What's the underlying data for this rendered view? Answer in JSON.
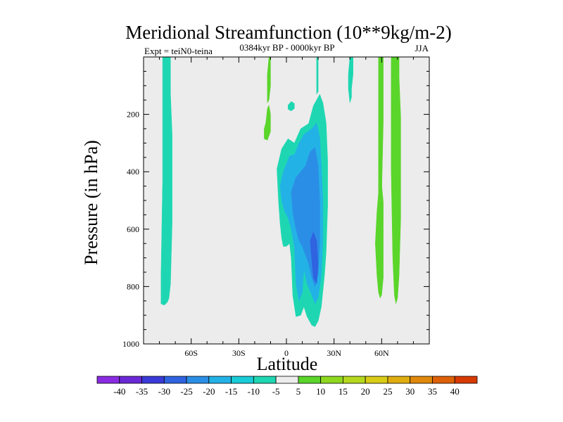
{
  "chart_data": {
    "type": "heatmap",
    "title": "Meridional Streamfunction (10**9kg/m-2)",
    "subtitle_left": "Expt = teiN0-teina",
    "subtitle_center": "0384kyr BP - 0000kyr BP",
    "subtitle_right": "JJA",
    "xlabel": "Latitude",
    "ylabel": "Pressure (in hPa)",
    "xlim": [
      -90,
      90
    ],
    "ylim": [
      0,
      1000
    ],
    "x_ticks": [
      {
        "value": -60,
        "label": "60S"
      },
      {
        "value": -30,
        "label": "30S"
      },
      {
        "value": 0,
        "label": "0"
      },
      {
        "value": 30,
        "label": "30N"
      },
      {
        "value": 60,
        "label": "60N"
      }
    ],
    "y_ticks": [
      {
        "value": 200,
        "label": "200"
      },
      {
        "value": 400,
        "label": "400"
      },
      {
        "value": 600,
        "label": "600"
      },
      {
        "value": 800,
        "label": "800"
      },
      {
        "value": 1000,
        "label": "1000"
      }
    ],
    "colorbar": {
      "labels": [
        "-40",
        "-35",
        "-30",
        "-25",
        "-20",
        "-15",
        "-10",
        "-5",
        "5",
        "10",
        "15",
        "20",
        "25",
        "30",
        "35",
        "40"
      ],
      "colors": [
        "#8a2be2",
        "#6a28d6",
        "#3a3ad8",
        "#2f63e0",
        "#2b8ee6",
        "#23b2e6",
        "#18ccd8",
        "#1ed7b2",
        "#ececec",
        "#5ad52a",
        "#8ed820",
        "#b5d81e",
        "#d9cc16",
        "#e0ad10",
        "#e0880c",
        "#de6008",
        "#d83a04"
      ]
    },
    "regions": [
      {
        "level": "-10",
        "color": "#1ed7b2",
        "points": [
          [
            -78,
            0
          ],
          [
            -73,
            0
          ],
          [
            -73,
            130
          ],
          [
            -72,
            270
          ],
          [
            -72,
            580
          ],
          [
            -73,
            790
          ],
          [
            -74,
            840
          ],
          [
            -75,
            855
          ],
          [
            -77,
            865
          ],
          [
            -79,
            860
          ],
          [
            -79,
            760
          ],
          [
            -78,
            430
          ],
          [
            -78,
            150
          ]
        ]
      },
      {
        "level": "-10",
        "color": "#1ed7b2",
        "points": [
          [
            -6,
            390
          ],
          [
            -3,
            320
          ],
          [
            1,
            285
          ],
          [
            5,
            300
          ],
          [
            9,
            250
          ],
          [
            14,
            232
          ],
          [
            17,
            170
          ],
          [
            21,
            130
          ],
          [
            23,
            160
          ],
          [
            25,
            230
          ],
          [
            26,
            360
          ],
          [
            26,
            520
          ],
          [
            25,
            680
          ],
          [
            24,
            760
          ],
          [
            22,
            870
          ],
          [
            20,
            920
          ],
          [
            18,
            940
          ],
          [
            16,
            935
          ],
          [
            13,
            905
          ],
          [
            11,
            870
          ],
          [
            9,
            900
          ],
          [
            6,
            905
          ],
          [
            4,
            830
          ],
          [
            3,
            700
          ],
          [
            2,
            650
          ],
          [
            0,
            660
          ],
          [
            -2,
            660
          ],
          [
            -3,
            630
          ],
          [
            -4,
            580
          ],
          [
            -5,
            500
          ]
        ]
      },
      {
        "level": "-10",
        "color": "#1ed7b2",
        "points": [
          [
            19,
            0
          ],
          [
            20,
            0
          ],
          [
            20,
            120
          ],
          [
            19,
            130
          ]
        ]
      },
      {
        "level": "-10",
        "color": "#1ed7b2",
        "points": [
          [
            40,
            0
          ],
          [
            42,
            0
          ],
          [
            42,
            60
          ],
          [
            41,
            110
          ],
          [
            41,
            140
          ],
          [
            40,
            160
          ],
          [
            39,
            110
          ],
          [
            39,
            60
          ]
        ]
      },
      {
        "level": "-10",
        "color": "#1ed7b2",
        "points": [
          [
            1,
            168
          ],
          [
            3,
            155
          ],
          [
            5,
            162
          ],
          [
            5,
            180
          ],
          [
            3,
            188
          ],
          [
            1,
            182
          ]
        ]
      },
      {
        "level": "-15",
        "color": "#23b2e6",
        "points": [
          [
            -4,
            450
          ],
          [
            -2,
            400
          ],
          [
            2,
            345
          ],
          [
            5,
            340
          ],
          [
            8,
            300
          ],
          [
            11,
            270
          ],
          [
            16,
            250
          ],
          [
            19,
            230
          ],
          [
            21,
            280
          ],
          [
            22,
            380
          ],
          [
            23,
            500
          ],
          [
            23,
            640
          ],
          [
            22,
            760
          ],
          [
            20,
            840
          ],
          [
            18,
            860
          ],
          [
            16,
            830
          ],
          [
            13,
            790
          ],
          [
            11,
            740
          ],
          [
            10,
            820
          ],
          [
            8,
            850
          ],
          [
            6,
            790
          ],
          [
            5,
            660
          ],
          [
            3,
            600
          ],
          [
            1,
            560
          ],
          [
            -1,
            540
          ],
          [
            -3,
            500
          ]
        ]
      },
      {
        "level": "-20",
        "color": "#2b8ee6",
        "points": [
          [
            3,
            470
          ],
          [
            6,
            420
          ],
          [
            9,
            400
          ],
          [
            12,
            380
          ],
          [
            15,
            330
          ],
          [
            18,
            315
          ],
          [
            20,
            380
          ],
          [
            21,
            500
          ],
          [
            21,
            640
          ],
          [
            20,
            760
          ],
          [
            18,
            800
          ],
          [
            16,
            770
          ],
          [
            14,
            720
          ],
          [
            12,
            690
          ],
          [
            10,
            660
          ],
          [
            8,
            640
          ],
          [
            6,
            600
          ],
          [
            4,
            540
          ]
        ]
      },
      {
        "level": "-25",
        "color": "#2f63e0",
        "points": [
          [
            15,
            640
          ],
          [
            17,
            610
          ],
          [
            19,
            640
          ],
          [
            20,
            720
          ],
          [
            19,
            790
          ],
          [
            17,
            770
          ],
          [
            16,
            710
          ]
        ]
      },
      {
        "level": "5",
        "color": "#5ad52a",
        "points": [
          [
            -11,
            0
          ],
          [
            -10,
            0
          ],
          [
            -10,
            100
          ],
          [
            -11,
            150
          ],
          [
            -12,
            160
          ],
          [
            -12,
            60
          ]
        ]
      },
      {
        "level": "5",
        "color": "#5ad52a",
        "points": [
          [
            -13,
            230
          ],
          [
            -12,
            180
          ],
          [
            -11,
            168
          ],
          [
            -10,
            200
          ],
          [
            -10,
            260
          ],
          [
            -12,
            290
          ],
          [
            -14,
            285
          ],
          [
            -14,
            250
          ]
        ]
      },
      {
        "level": "5",
        "color": "#5ad52a",
        "points": [
          [
            66,
            0
          ],
          [
            71,
            0
          ],
          [
            71,
            70
          ],
          [
            72,
            210
          ],
          [
            72,
            560
          ],
          [
            71,
            760
          ],
          [
            70,
            840
          ],
          [
            69,
            860
          ],
          [
            68,
            830
          ],
          [
            67,
            700
          ],
          [
            66,
            400
          ],
          [
            66,
            150
          ]
        ]
      },
      {
        "level": "5",
        "color": "#5ad52a",
        "points": [
          [
            58,
            0
          ],
          [
            61,
            0
          ],
          [
            61,
            230
          ],
          [
            60,
            480
          ],
          [
            60,
            660
          ],
          [
            59,
            670
          ],
          [
            58,
            640
          ],
          [
            58,
            300
          ]
        ]
      },
      {
        "level": "5",
        "color": "#5ad52a",
        "points": [
          [
            57,
            540
          ],
          [
            58,
            475
          ],
          [
            60,
            445
          ],
          [
            61,
            505
          ],
          [
            61,
            700
          ],
          [
            61,
            770
          ],
          [
            60,
            830
          ],
          [
            59,
            840
          ],
          [
            58,
            820
          ],
          [
            57,
            760
          ],
          [
            56,
            650
          ]
        ]
      }
    ]
  }
}
